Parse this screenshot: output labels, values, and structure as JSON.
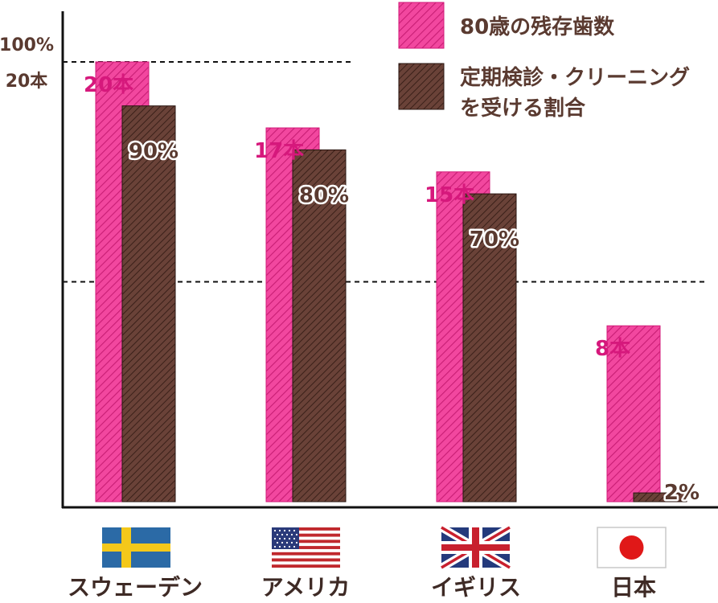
{
  "chart_data": {
    "type": "bar",
    "categories": [
      "スウェーデン",
      "アメリカ",
      "イギリス",
      "日本"
    ],
    "series": [
      {
        "name": "80歳の残存歯数",
        "values": [
          20,
          17,
          15,
          8
        ],
        "labels": [
          "20本",
          "17本",
          "15本",
          "8本"
        ],
        "unit": "本",
        "max": 20
      },
      {
        "name": "定期検診・クリーニングを受ける割合",
        "values": [
          90,
          80,
          70,
          2
        ],
        "labels": [
          "90%",
          "80%",
          "70%",
          "2%"
        ],
        "unit": "%",
        "max": 100
      }
    ],
    "y_ticks": [
      "100%",
      "20本"
    ],
    "reference_lines": [
      100,
      50
    ],
    "legend": {
      "placement": "top-right",
      "items": [
        {
          "lines": [
            "80歳の残存歯数"
          ]
        },
        {
          "lines": [
            "定期検診・クリーニング",
            "を受ける割合"
          ]
        }
      ]
    },
    "flags": [
      "sweden-flag",
      "usa-flag",
      "uk-flag",
      "japan-flag"
    ]
  },
  "colors": {
    "teeth_fill": "#f2479f",
    "teeth_hatch": "#c81d74",
    "teeth_border": "#d21a78",
    "care_fill": "#6a4238",
    "care_hatch": "#3a2019",
    "teeth_label": "#d6187c",
    "pct_label": "#5a3a30",
    "axis": "#111111",
    "country_label": "#3e2a25"
  }
}
